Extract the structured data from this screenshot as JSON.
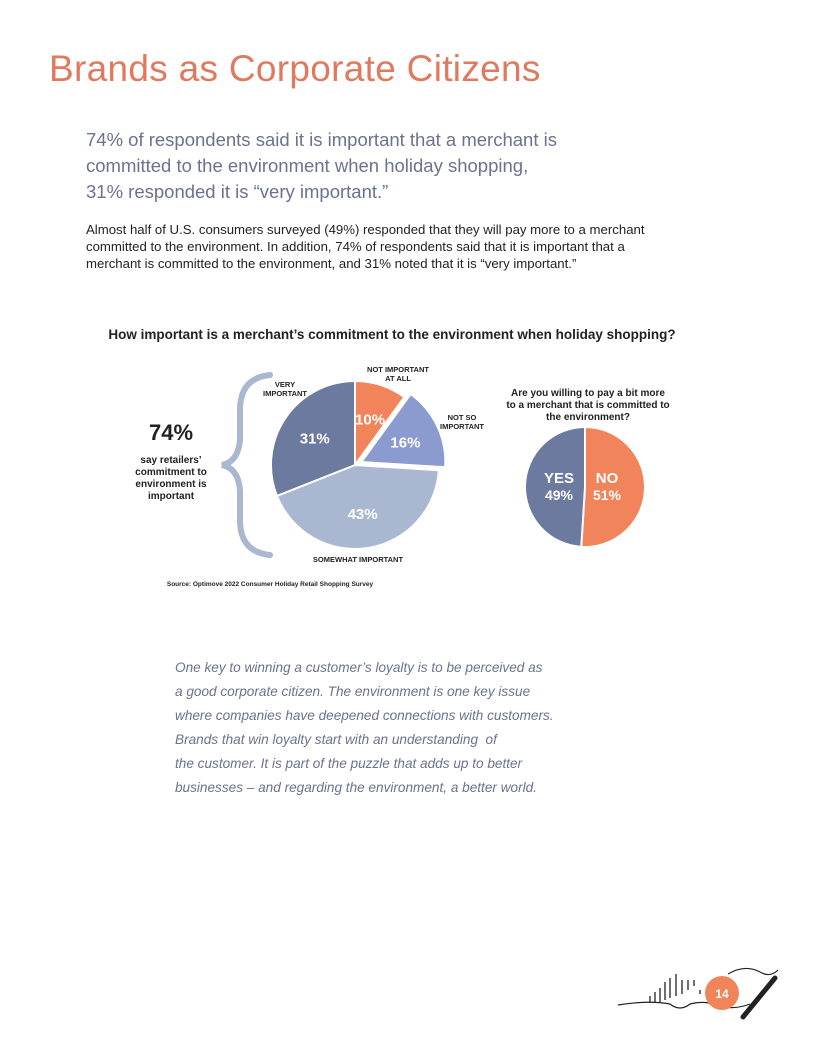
{
  "header": {
    "title": "Brands as Corporate Citizens"
  },
  "lead": {
    "lines": [
      "74% of respondents said it is important that a merchant is",
      "committed to the environment when holiday shopping,",
      "31% responded it is “very important.”"
    ]
  },
  "body": "Almost half of U.S. consumers surveyed (49%) responded that they will pay more to a merchant committed to the environment. In addition, 74% of respondents said that it is important that a merchant is committed to the environment, and 31% noted that it is “very important.”",
  "infographic": {
    "title": "How important is a merchant’s commitment to the environment when holiday shopping?",
    "callout": {
      "value": "74%",
      "text": "say retailers’ commitment to environment is important"
    },
    "source": "Source: Optimove 2022 Consumer Holiday Retail Shopping Survey"
  },
  "chart_data": [
    {
      "type": "pie",
      "categories": [
        "NOT IMPORTANT AT ALL",
        "NOT SO IMPORTANT",
        "SOMEWHAT IMPORTANT",
        "VERY IMPORTANT"
      ],
      "values": [
        10,
        16,
        43,
        31
      ],
      "value_labels": [
        "10%",
        "16%",
        "43%",
        "31%"
      ],
      "colors": [
        "#f2845c",
        "#8b9bd0",
        "#a9b8d0",
        "#6b7a9e"
      ]
    },
    {
      "type": "pie",
      "title": "Are you willing to pay a bit more to a merchant that is committed to the environment?",
      "categories": [
        "NO",
        "YES"
      ],
      "values": [
        51,
        49
      ],
      "value_labels": [
        "51%",
        "49%"
      ],
      "colors": [
        "#f2845c",
        "#6b7a9e"
      ]
    }
  ],
  "quote": {
    "lines": [
      "One key to winning a customer’s loyalty is to be perceived as",
      "a good corporate citizen. The environment is one key issue",
      "where companies have deepened connections with customers.",
      "Brands that win loyalty start with an understanding  of",
      "the customer. It is part of the puzzle that adds up to better",
      "businesses – and regarding the environment, a better world."
    ]
  },
  "page_number": "14"
}
